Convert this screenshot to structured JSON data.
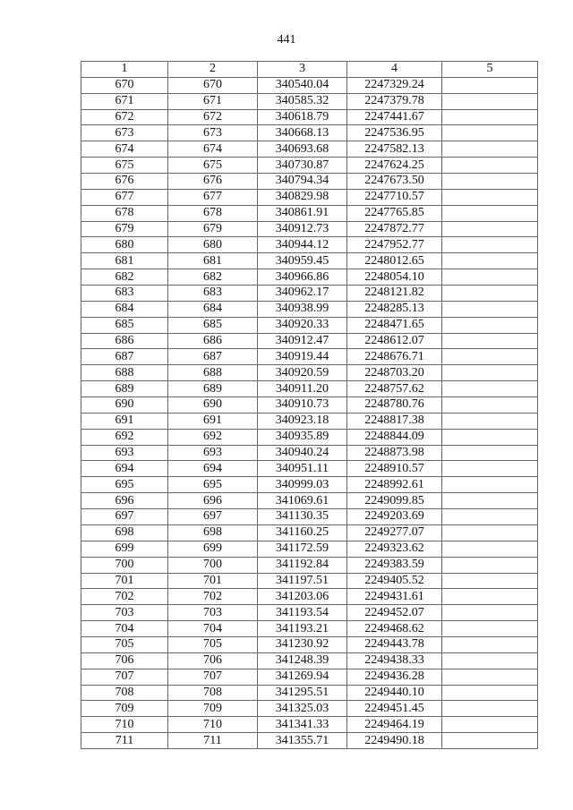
{
  "page_number": "441",
  "table": {
    "headers": [
      "1",
      "2",
      "3",
      "4",
      "5"
    ],
    "rows": [
      [
        "670",
        "670",
        "340540.04",
        "2247329.24",
        ""
      ],
      [
        "671",
        "671",
        "340585.32",
        "2247379.78",
        ""
      ],
      [
        "672",
        "672",
        "340618.79",
        "2247441.67",
        ""
      ],
      [
        "673",
        "673",
        "340668.13",
        "2247536.95",
        ""
      ],
      [
        "674",
        "674",
        "340693.68",
        "2247582.13",
        ""
      ],
      [
        "675",
        "675",
        "340730.87",
        "2247624.25",
        ""
      ],
      [
        "676",
        "676",
        "340794.34",
        "2247673.50",
        ""
      ],
      [
        "677",
        "677",
        "340829.98",
        "2247710.57",
        ""
      ],
      [
        "678",
        "678",
        "340861.91",
        "2247765.85",
        ""
      ],
      [
        "679",
        "679",
        "340912.73",
        "2247872.77",
        ""
      ],
      [
        "680",
        "680",
        "340944.12",
        "2247952.77",
        ""
      ],
      [
        "681",
        "681",
        "340959.45",
        "2248012.65",
        ""
      ],
      [
        "682",
        "682",
        "340966.86",
        "2248054.10",
        ""
      ],
      [
        "683",
        "683",
        "340962.17",
        "2248121.82",
        ""
      ],
      [
        "684",
        "684",
        "340938.99",
        "2248285.13",
        ""
      ],
      [
        "685",
        "685",
        "340920.33",
        "2248471.65",
        ""
      ],
      [
        "686",
        "686",
        "340912.47",
        "2248612.07",
        ""
      ],
      [
        "687",
        "687",
        "340919.44",
        "2248676.71",
        ""
      ],
      [
        "688",
        "688",
        "340920.59",
        "2248703.20",
        ""
      ],
      [
        "689",
        "689",
        "340911.20",
        "2248757.62",
        ""
      ],
      [
        "690",
        "690",
        "340910.73",
        "2248780.76",
        ""
      ],
      [
        "691",
        "691",
        "340923.18",
        "2248817.38",
        ""
      ],
      [
        "692",
        "692",
        "340935.89",
        "2248844.09",
        ""
      ],
      [
        "693",
        "693",
        "340940.24",
        "2248873.98",
        ""
      ],
      [
        "694",
        "694",
        "340951.11",
        "2248910.57",
        ""
      ],
      [
        "695",
        "695",
        "340999.03",
        "2248992.61",
        ""
      ],
      [
        "696",
        "696",
        "341069.61",
        "2249099.85",
        ""
      ],
      [
        "697",
        "697",
        "341130.35",
        "2249203.69",
        ""
      ],
      [
        "698",
        "698",
        "341160.25",
        "2249277.07",
        ""
      ],
      [
        "699",
        "699",
        "341172.59",
        "2249323.62",
        ""
      ],
      [
        "700",
        "700",
        "341192.84",
        "2249383.59",
        ""
      ],
      [
        "701",
        "701",
        "341197.51",
        "2249405.52",
        ""
      ],
      [
        "702",
        "702",
        "341203.06",
        "2249431.61",
        ""
      ],
      [
        "703",
        "703",
        "341193.54",
        "2249452.07",
        ""
      ],
      [
        "704",
        "704",
        "341193.21",
        "2249468.62",
        ""
      ],
      [
        "705",
        "705",
        "341230.92",
        "2249443.78",
        ""
      ],
      [
        "706",
        "706",
        "341248.39",
        "2249438.33",
        ""
      ],
      [
        "707",
        "707",
        "341269.94",
        "2249436.28",
        ""
      ],
      [
        "708",
        "708",
        "341295.51",
        "2249440.10",
        ""
      ],
      [
        "709",
        "709",
        "341325.03",
        "2249451.45",
        ""
      ],
      [
        "710",
        "710",
        "341341.33",
        "2249464.19",
        ""
      ],
      [
        "711",
        "711",
        "341355.71",
        "2249490.18",
        ""
      ]
    ]
  }
}
